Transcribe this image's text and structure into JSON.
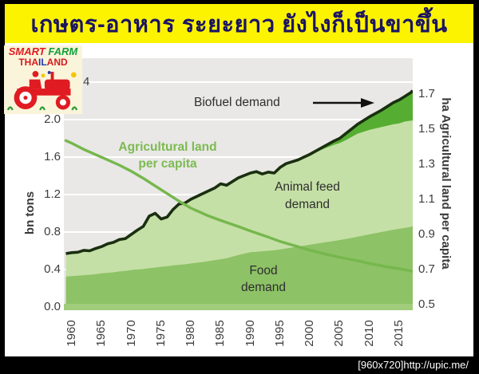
{
  "banner": {
    "title": "เกษตร-อาหาร ระยะยาว ยังไงก็เป็นขาขึ้น"
  },
  "logo": {
    "line1_part1": "SMART",
    "line1_part2": "FARM",
    "thailand_parts": [
      {
        "text": "THA",
        "style": "color:#d7191c"
      },
      {
        "text": "IL",
        "style": "color:#2438a8"
      },
      {
        "text": "AND",
        "style": "color:#d7191c"
      }
    ]
  },
  "chart": {
    "left_axis_title": "bn tons",
    "right_axis_title": "ha Agricultural land per capita",
    "left_ticks": [
      "2.0",
      "1.6",
      "1.2",
      "0.8",
      "0.4",
      "0.0"
    ],
    "left_tick_top_partial": "4",
    "right_ticks": [
      "1.7",
      "1.5",
      "1.3",
      "1.1",
      "0.9",
      "0.7",
      "0.5"
    ],
    "x_ticks": [
      "1960",
      "1965",
      "1970",
      "1975",
      "1980",
      "1985",
      "1990",
      "1995",
      "2000",
      "2005",
      "2010",
      "2015"
    ],
    "annotations": {
      "land": "Agricultural land\nper capita",
      "biofuel": "Biofuel demand",
      "animal_feed": "Animal feed\ndemand",
      "food": "Food\ndemand"
    }
  },
  "credit": {
    "text": "[960x720]http://upic.me/"
  },
  "chart_data": {
    "type": "area",
    "subtype": "stacked-area-with-line",
    "left_axis": {
      "label": "bn tons",
      "range": [
        0,
        2.4
      ],
      "tick_step": 0.4
    },
    "right_axis": {
      "label": "ha Agricultural land per capita",
      "range": [
        0.5,
        1.7
      ],
      "tick_step": 0.2
    },
    "x_axis": {
      "range": [
        1959,
        2018
      ],
      "tick_step": 5,
      "grid": "horizontal-white-lines"
    },
    "x_years": [
      1959,
      1960,
      1961,
      1962,
      1963,
      1964,
      1965,
      1966,
      1967,
      1968,
      1969,
      1970,
      1971,
      1972,
      1973,
      1974,
      1975,
      1976,
      1977,
      1978,
      1979,
      1980,
      1982,
      1984,
      1985,
      1986,
      1988,
      1990,
      1991,
      1992,
      1993,
      1994,
      1995,
      1996,
      1998,
      2000,
      2002,
      2004,
      2005,
      2006,
      2008,
      2010,
      2012,
      2014,
      2015,
      2016,
      2017,
      2018
    ],
    "series": [
      {
        "name": "Food demand",
        "type": "area",
        "axis": "left",
        "values": [
          0.325,
          0.33,
          0.335,
          0.34,
          0.345,
          0.35,
          0.36,
          0.365,
          0.37,
          0.38,
          0.385,
          0.395,
          0.4,
          0.405,
          0.415,
          0.42,
          0.43,
          0.435,
          0.445,
          0.45,
          0.455,
          0.465,
          0.48,
          0.5,
          0.51,
          0.52,
          0.555,
          0.585,
          0.59,
          0.595,
          0.6,
          0.605,
          0.615,
          0.625,
          0.645,
          0.665,
          0.685,
          0.705,
          0.715,
          0.725,
          0.75,
          0.775,
          0.8,
          0.825,
          0.835,
          0.845,
          0.855,
          0.865
        ]
      },
      {
        "name": "Animal feed demand",
        "type": "area",
        "axis": "left",
        "values": [
          0.245,
          0.25,
          0.25,
          0.265,
          0.255,
          0.275,
          0.285,
          0.31,
          0.32,
          0.34,
          0.345,
          0.38,
          0.42,
          0.455,
          0.555,
          0.58,
          0.51,
          0.525,
          0.595,
          0.65,
          0.655,
          0.685,
          0.73,
          0.77,
          0.805,
          0.78,
          0.825,
          0.845,
          0.855,
          0.825,
          0.84,
          0.825,
          0.875,
          0.905,
          0.925,
          0.955,
          0.995,
          1.025,
          1.035,
          1.055,
          1.1,
          1.115,
          1.12,
          1.125,
          1.125,
          1.135,
          1.135,
          1.125
        ]
      },
      {
        "name": "Biofuel demand",
        "type": "area",
        "axis": "left",
        "values": [
          0,
          0,
          0,
          0,
          0,
          0,
          0,
          0,
          0,
          0,
          0,
          0,
          0,
          0,
          0,
          0,
          0,
          0,
          0,
          0,
          0,
          0,
          0,
          0,
          0,
          0,
          0,
          0,
          0,
          0,
          0,
          0,
          0,
          0,
          0,
          0.01,
          0.02,
          0.04,
          0.05,
          0.07,
          0.1,
          0.14,
          0.18,
          0.23,
          0.25,
          0.27,
          0.3,
          0.32
        ]
      }
    ],
    "line_series": {
      "name": "Agricultural land per capita",
      "type": "line",
      "axis": "right",
      "x_years": [
        1959,
        1960,
        1962,
        1965,
        1968,
        1970,
        1972,
        1975,
        1978,
        1980,
        1983,
        1985,
        1988,
        1990,
        1993,
        1995,
        1998,
        2000,
        2003,
        2005,
        2008,
        2010,
        2013,
        2015,
        2018
      ],
      "values": [
        1.435,
        1.42,
        1.385,
        1.34,
        1.295,
        1.26,
        1.22,
        1.155,
        1.09,
        1.05,
        1.005,
        0.98,
        0.945,
        0.92,
        0.885,
        0.86,
        0.83,
        0.81,
        0.785,
        0.77,
        0.75,
        0.735,
        0.715,
        0.705,
        0.69
      ]
    },
    "colors": {
      "food": "#8dc266",
      "animal_feed": "#c5e0a6",
      "biofuel": "#55ae31",
      "total_line": "#1a2f10",
      "land_line": "#76b74d",
      "plot_bg": "#e9e8e6",
      "grid": "#ffffff",
      "banner_bg": "#fcf300",
      "banner_text": "#1b1464"
    }
  }
}
